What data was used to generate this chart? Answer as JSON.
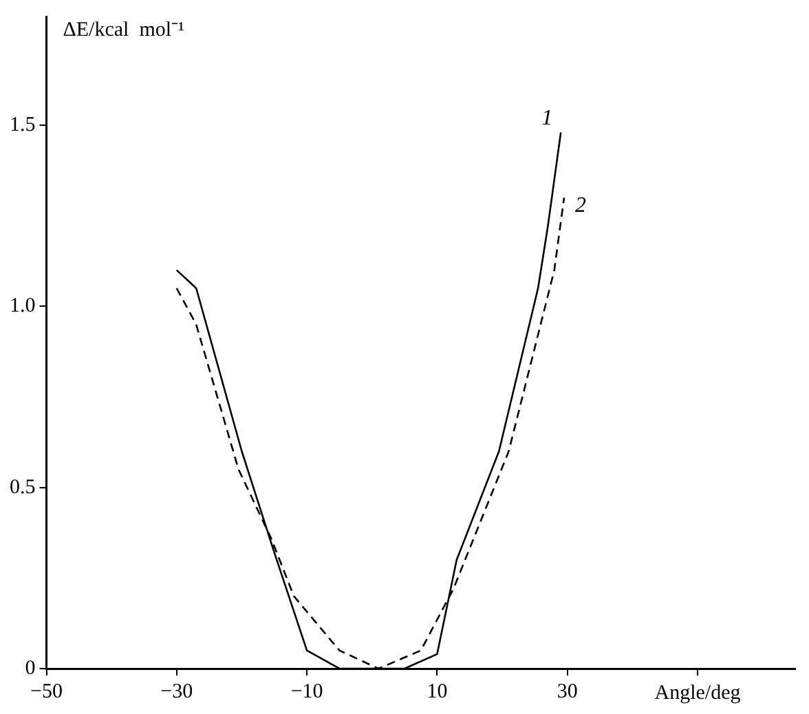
{
  "chart_data": {
    "type": "line",
    "xlabel": "Angle/deg",
    "ylabel": "ΔE/kcal  mol⁻¹",
    "xlim": [
      -50,
      65
    ],
    "ylim": [
      0,
      1.8
    ],
    "xticks": [
      {
        "value": -50,
        "label": "−50"
      },
      {
        "value": -30,
        "label": "−30"
      },
      {
        "value": -10,
        "label": "−10"
      },
      10,
      30,
      {
        "value": 50,
        "label": null
      }
    ],
    "yticks": [
      0,
      0.5,
      {
        "value": 1,
        "label": "1.0"
      },
      1.5
    ],
    "grid": false,
    "legend": false,
    "marker": "none",
    "series": [
      {
        "name": "1",
        "color": "#000000",
        "line_style": "solid",
        "x": [
          -30,
          -27,
          -20,
          -15,
          -10,
          -5,
          5,
          10,
          13,
          19.5,
          25.5,
          27,
          29
        ],
        "values": [
          1.1,
          1.05,
          0.6,
          0.32,
          0.05,
          0,
          0,
          0.04,
          0.3,
          0.6,
          1.05,
          1.22,
          1.48
        ]
      },
      {
        "name": "2",
        "color": "#000000",
        "line_style": "dashed",
        "x": [
          -30,
          -27,
          -20.5,
          -15.5,
          -12,
          -5,
          1,
          7.5,
          12.5,
          21,
          28,
          29.5
        ],
        "values": [
          1.05,
          0.95,
          0.55,
          0.36,
          0.2,
          0.05,
          0,
          0.05,
          0.22,
          0.6,
          1.1,
          1.3
        ]
      }
    ]
  }
}
